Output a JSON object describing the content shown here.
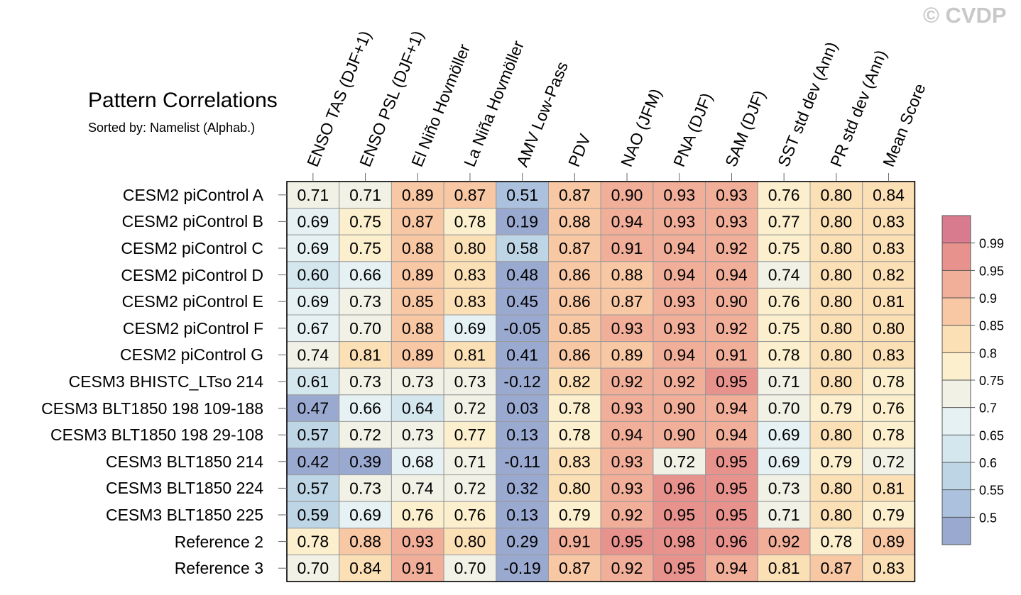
{
  "title": "Pattern Correlations",
  "subtitle": "Sorted by: Namelist (Alphab.)",
  "watermark": "© CVDP",
  "chart_data": {
    "type": "heatmap",
    "title": "Pattern Correlations",
    "subtitle": "Sorted by: Namelist (Alphab.)",
    "columns": [
      "ENSO TAS (DJF+1)",
      "ENSO PSL (DJF+1)",
      "El Niño Hovmöller",
      "La Niña Hovmöller",
      "AMV Low-Pass",
      "PDV",
      "NAO (JFM)",
      "PNA (DJF)",
      "SAM (DJF)",
      "SST std dev (Ann)",
      "PR std dev (Ann)",
      "Mean Score"
    ],
    "rows": [
      "CESM2 piControl A",
      "CESM2 piControl B",
      "CESM2 piControl C",
      "CESM2 piControl D",
      "CESM2 piControl E",
      "CESM2 piControl F",
      "CESM2 piControl G",
      "CESM3 BHISTC_LTso 214",
      "CESM3 BLT1850 198 109-188",
      "CESM3 BLT1850 198 29-108",
      "CESM3 BLT1850 214",
      "CESM3 BLT1850 224",
      "CESM3 BLT1850 225",
      "Reference 2",
      "Reference 3"
    ],
    "values": [
      [
        "0.71",
        "0.71",
        "0.89",
        "0.87",
        "0.51",
        "0.87",
        "0.90",
        "0.93",
        "0.93",
        "0.76",
        "0.80",
        "0.84"
      ],
      [
        "0.69",
        "0.75",
        "0.87",
        "0.78",
        "0.19",
        "0.88",
        "0.94",
        "0.93",
        "0.93",
        "0.77",
        "0.80",
        "0.83"
      ],
      [
        "0.69",
        "0.75",
        "0.88",
        "0.80",
        "0.58",
        "0.87",
        "0.91",
        "0.94",
        "0.92",
        "0.75",
        "0.80",
        "0.83"
      ],
      [
        "0.60",
        "0.66",
        "0.89",
        "0.83",
        "0.48",
        "0.86",
        "0.88",
        "0.94",
        "0.94",
        "0.74",
        "0.80",
        "0.82"
      ],
      [
        "0.69",
        "0.73",
        "0.85",
        "0.83",
        "0.45",
        "0.86",
        "0.87",
        "0.93",
        "0.90",
        "0.76",
        "0.80",
        "0.81"
      ],
      [
        "0.67",
        "0.70",
        "0.88",
        "0.69",
        "-0.05",
        "0.85",
        "0.93",
        "0.93",
        "0.92",
        "0.75",
        "0.80",
        "0.80"
      ],
      [
        "0.74",
        "0.81",
        "0.89",
        "0.81",
        "0.41",
        "0.86",
        "0.89",
        "0.94",
        "0.91",
        "0.78",
        "0.80",
        "0.83"
      ],
      [
        "0.61",
        "0.73",
        "0.73",
        "0.73",
        "-0.12",
        "0.82",
        "0.92",
        "0.92",
        "0.95",
        "0.71",
        "0.80",
        "0.78"
      ],
      [
        "0.47",
        "0.66",
        "0.64",
        "0.72",
        "0.03",
        "0.78",
        "0.93",
        "0.90",
        "0.94",
        "0.70",
        "0.79",
        "0.76"
      ],
      [
        "0.57",
        "0.72",
        "0.73",
        "0.77",
        "0.13",
        "0.78",
        "0.94",
        "0.90",
        "0.94",
        "0.69",
        "0.80",
        "0.78"
      ],
      [
        "0.42",
        "0.39",
        "0.68",
        "0.71",
        "-0.11",
        "0.83",
        "0.93",
        "0.72",
        "0.95",
        "0.69",
        "0.79",
        "0.72"
      ],
      [
        "0.57",
        "0.73",
        "0.74",
        "0.72",
        "0.32",
        "0.80",
        "0.93",
        "0.96",
        "0.95",
        "0.73",
        "0.80",
        "0.81"
      ],
      [
        "0.59",
        "0.69",
        "0.76",
        "0.76",
        "0.13",
        "0.79",
        "0.92",
        "0.95",
        "0.95",
        "0.71",
        "0.80",
        "0.79"
      ],
      [
        "0.78",
        "0.88",
        "0.93",
        "0.80",
        "0.29",
        "0.91",
        "0.95",
        "0.98",
        "0.96",
        "0.92",
        "0.78",
        "0.89"
      ],
      [
        "0.70",
        "0.84",
        "0.91",
        "0.70",
        "-0.19",
        "0.87",
        "0.92",
        "0.95",
        "0.94",
        "0.81",
        "0.87",
        "0.83"
      ]
    ],
    "colorbar": {
      "levels": [
        0.5,
        0.55,
        0.6,
        0.65,
        0.7,
        0.75,
        0.8,
        0.85,
        0.9,
        0.95,
        0.99
      ],
      "tick_labels": [
        "0.5",
        "0.55",
        "0.6",
        "0.65",
        "0.7",
        "0.75",
        "0.8",
        "0.85",
        "0.9",
        "0.95",
        "0.99"
      ],
      "colors": [
        "#9aa9d0",
        "#abc1dd",
        "#bed5e6",
        "#d4e6ee",
        "#e6f1f3",
        "#f1f1e6",
        "#fbefcd",
        "#fbdfb5",
        "#f8c7a4",
        "#f1ae99",
        "#e8928e",
        "#d87b8f"
      ],
      "placement": "right"
    }
  }
}
